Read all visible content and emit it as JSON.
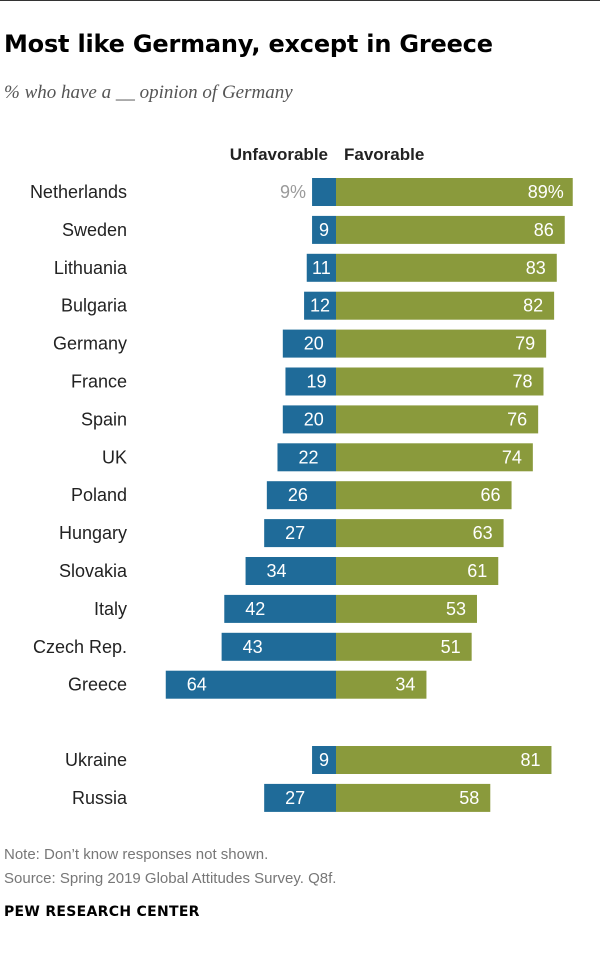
{
  "title": "Most like Germany, except in Greece",
  "subtitle": "% who have a __ opinion of Germany",
  "note": "Note: Don’t know responses not shown.",
  "source": "Source: Spring 2019 Global Attitudes Survey. Q8f.",
  "brand": "PEW RESEARCH CENTER",
  "colors": {
    "unfavorable": "#1f6b99",
    "favorable": "#8a9a3c",
    "first_unfav_label": "#9a9a9a"
  },
  "chart_data": {
    "type": "bar",
    "orientation": "horizontal-diverging",
    "legend": {
      "unfavorable": "Unfavorable",
      "favorable": "Favorable"
    },
    "groups": [
      {
        "rows": [
          {
            "country": "Netherlands",
            "unfavorable": 9,
            "favorable": 89,
            "unfav_label": "9%",
            "fav_label": "89%"
          },
          {
            "country": "Sweden",
            "unfavorable": 9,
            "favorable": 86,
            "unfav_label": "9",
            "fav_label": "86"
          },
          {
            "country": "Lithuania",
            "unfavorable": 11,
            "favorable": 83,
            "unfav_label": "11",
            "fav_label": "83"
          },
          {
            "country": "Bulgaria",
            "unfavorable": 12,
            "favorable": 82,
            "unfav_label": "12",
            "fav_label": "82"
          },
          {
            "country": "Germany",
            "unfavorable": 20,
            "favorable": 79,
            "unfav_label": "20",
            "fav_label": "79"
          },
          {
            "country": "France",
            "unfavorable": 19,
            "favorable": 78,
            "unfav_label": "19",
            "fav_label": "78"
          },
          {
            "country": "Spain",
            "unfavorable": 20,
            "favorable": 76,
            "unfav_label": "20",
            "fav_label": "76"
          },
          {
            "country": "UK",
            "unfavorable": 22,
            "favorable": 74,
            "unfav_label": "22",
            "fav_label": "74"
          },
          {
            "country": "Poland",
            "unfavorable": 26,
            "favorable": 66,
            "unfav_label": "26",
            "fav_label": "66"
          },
          {
            "country": "Hungary",
            "unfavorable": 27,
            "favorable": 63,
            "unfav_label": "27",
            "fav_label": "63"
          },
          {
            "country": "Slovakia",
            "unfavorable": 34,
            "favorable": 61,
            "unfav_label": "34",
            "fav_label": "61"
          },
          {
            "country": "Italy",
            "unfavorable": 42,
            "favorable": 53,
            "unfav_label": "42",
            "fav_label": "53"
          },
          {
            "country": "Czech Rep.",
            "unfavorable": 43,
            "favorable": 51,
            "unfav_label": "43",
            "fav_label": "51"
          },
          {
            "country": "Greece",
            "unfavorable": 64,
            "favorable": 34,
            "unfav_label": "64",
            "fav_label": "34"
          }
        ]
      },
      {
        "rows": [
          {
            "country": "Ukraine",
            "unfavorable": 9,
            "favorable": 81,
            "unfav_label": "9",
            "fav_label": "81"
          },
          {
            "country": "Russia",
            "unfavorable": 27,
            "favorable": 58,
            "unfav_label": "27",
            "fav_label": "58"
          }
        ]
      }
    ]
  }
}
